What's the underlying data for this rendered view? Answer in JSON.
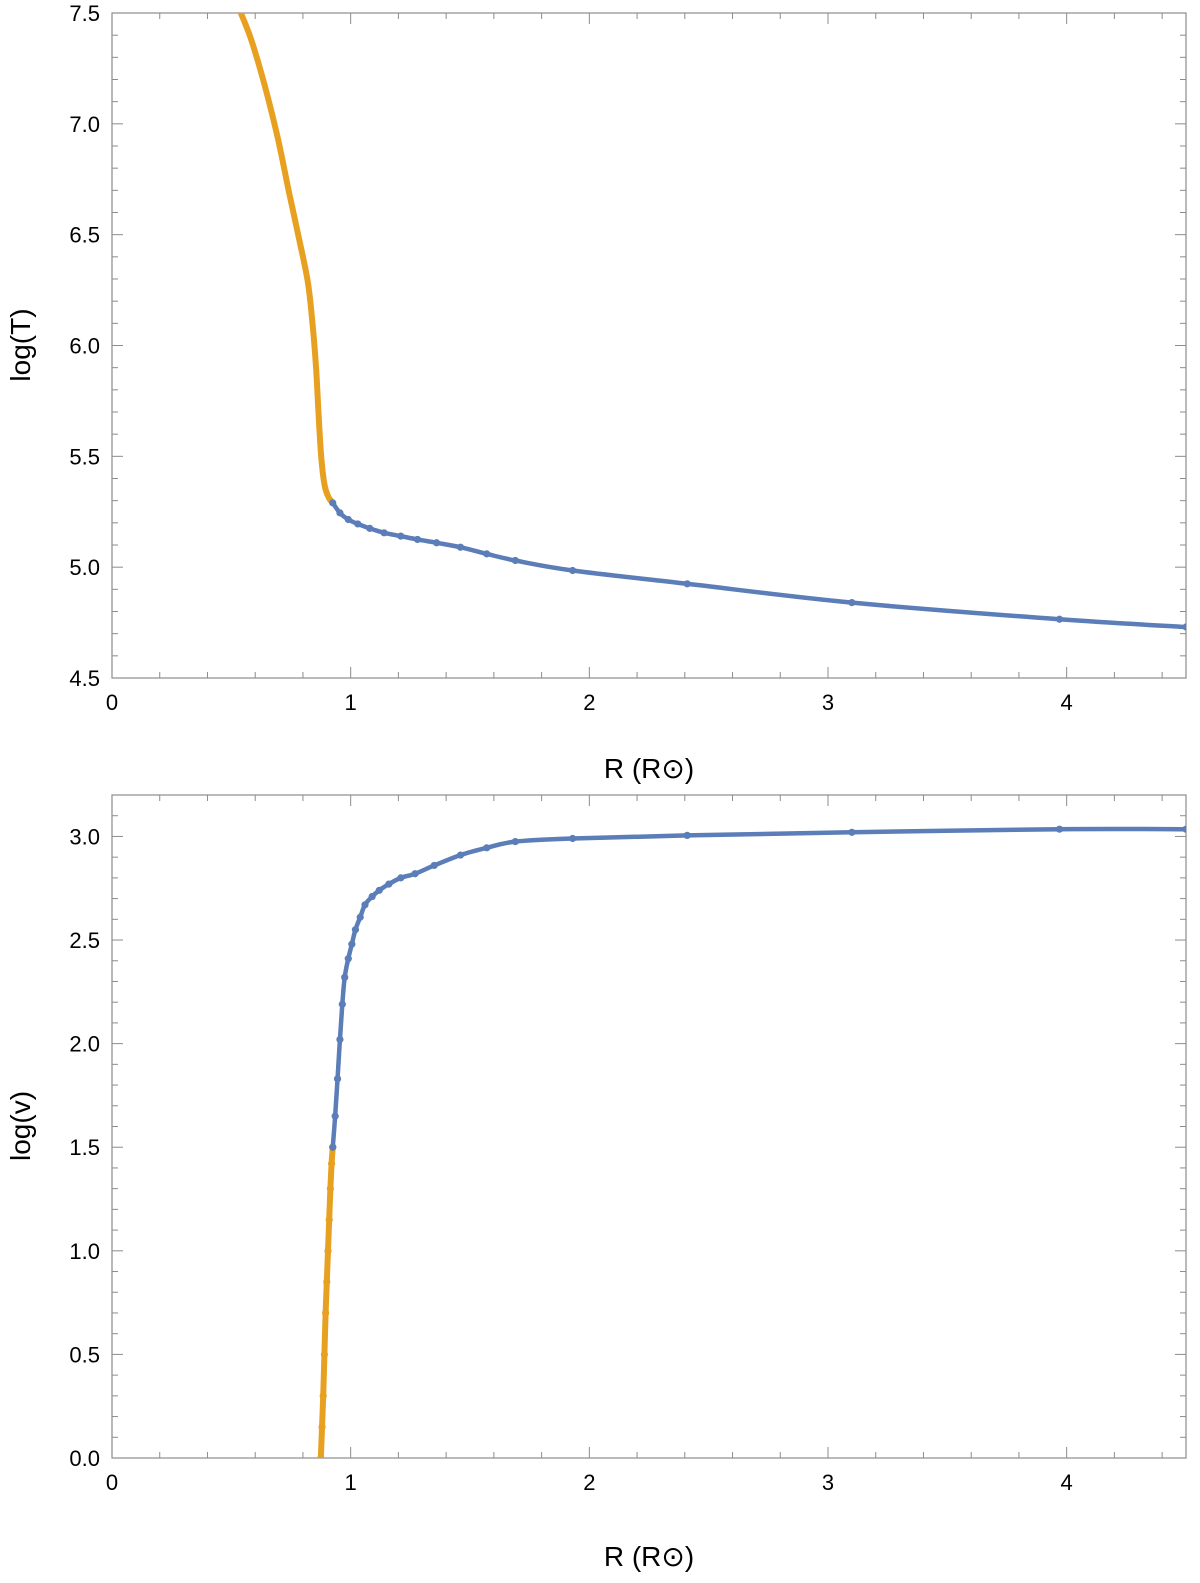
{
  "chart_data": [
    {
      "type": "line",
      "title": "",
      "xlabel": "R (R⊙)",
      "ylabel": "log(T)",
      "xlim": [
        0,
        4.5
      ],
      "ylim": [
        4.5,
        7.5
      ],
      "x_ticks": [
        0,
        1,
        2,
        3,
        4
      ],
      "x_tick_labels": [
        "0",
        "1",
        "2",
        "3",
        "4"
      ],
      "y_ticks": [
        4.5,
        5.0,
        5.5,
        6.0,
        6.5,
        7.0,
        7.5
      ],
      "y_tick_labels": [
        "4.5",
        "5.0",
        "5.5",
        "6.0",
        "6.5",
        "7.0",
        "7.5"
      ],
      "grid": false,
      "series": [
        {
          "color": "#E8A020",
          "markers": false,
          "x": [
            0.54,
            0.58,
            0.62,
            0.66,
            0.7,
            0.74,
            0.78,
            0.82,
            0.84,
            0.855,
            0.865,
            0.875,
            0.885,
            0.895,
            0.91,
            0.925
          ],
          "y": [
            7.5,
            7.39,
            7.25,
            7.09,
            6.91,
            6.7,
            6.5,
            6.29,
            6.1,
            5.9,
            5.7,
            5.52,
            5.41,
            5.35,
            5.31,
            5.29
          ]
        },
        {
          "color": "#5B7DB8",
          "markers": true,
          "x": [
            0.925,
            0.955,
            0.99,
            1.03,
            1.08,
            1.14,
            1.21,
            1.28,
            1.36,
            1.46,
            1.57,
            1.69,
            1.93,
            2.41,
            3.1,
            3.97,
            4.5
          ],
          "y": [
            5.29,
            5.245,
            5.215,
            5.195,
            5.175,
            5.155,
            5.14,
            5.125,
            5.11,
            5.09,
            5.06,
            5.03,
            4.985,
            4.925,
            4.84,
            4.765,
            4.73
          ]
        }
      ]
    },
    {
      "type": "line",
      "title": "",
      "xlabel": "R (R⊙)",
      "ylabel": "log(v)",
      "xlim": [
        0,
        4.5
      ],
      "ylim": [
        0,
        3.2
      ],
      "x_ticks": [
        0,
        1,
        2,
        3,
        4
      ],
      "x_tick_labels": [
        "0",
        "1",
        "2",
        "3",
        "4"
      ],
      "y_ticks": [
        0.0,
        0.5,
        1.0,
        1.5,
        2.0,
        2.5,
        3.0
      ],
      "y_tick_labels": [
        "0.0",
        "0.5",
        "1.0",
        "1.5",
        "2.0",
        "2.5",
        "3.0"
      ],
      "grid": false,
      "series": [
        {
          "color": "#E8A020",
          "markers": true,
          "x": [
            0.875,
            0.88,
            0.885,
            0.89,
            0.895,
            0.9,
            0.905,
            0.91,
            0.915,
            0.92,
            0.925
          ],
          "y": [
            0.0,
            0.15,
            0.3,
            0.5,
            0.7,
            0.85,
            1.0,
            1.15,
            1.3,
            1.42,
            1.5
          ]
        },
        {
          "color": "#5B7DB8",
          "markers": true,
          "x": [
            0.925,
            0.935,
            0.945,
            0.955,
            0.965,
            0.975,
            0.99,
            1.005,
            1.02,
            1.04,
            1.06,
            1.09,
            1.12,
            1.16,
            1.21,
            1.27,
            1.35,
            1.46,
            1.57,
            1.69,
            1.93,
            2.41,
            3.1,
            3.97,
            4.5
          ],
          "y": [
            1.5,
            1.65,
            1.83,
            2.02,
            2.19,
            2.32,
            2.41,
            2.48,
            2.55,
            2.61,
            2.67,
            2.71,
            2.74,
            2.77,
            2.8,
            2.82,
            2.86,
            2.91,
            2.945,
            2.975,
            2.99,
            3.005,
            3.02,
            3.035,
            3.035
          ]
        }
      ]
    }
  ]
}
